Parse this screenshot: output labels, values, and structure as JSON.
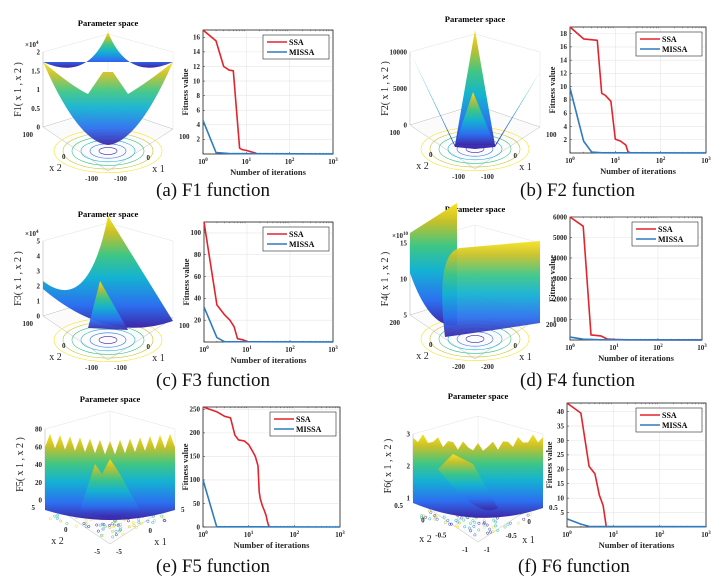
{
  "figure": {
    "panels": [
      {
        "id": "a",
        "caption": "(a) F1 function"
      },
      {
        "id": "b",
        "caption": "(b) F2 function"
      },
      {
        "id": "c",
        "caption": "(c) F3 function"
      },
      {
        "id": "d",
        "caption": "(d) F4 function"
      },
      {
        "id": "e",
        "caption": "(e) F5 function"
      },
      {
        "id": "f",
        "caption": "(f) F6 function"
      }
    ]
  },
  "colors": {
    "ssa": "#e3242b",
    "missa": "#2e7bbf",
    "grid": "#e6e6e6",
    "axis": "#262626"
  },
  "chart_data": [
    {
      "panel": "a",
      "type": "surface",
      "title": "Parameter space",
      "zlabel": "F1( x 1 , x 2 )",
      "xlabel": "x 1",
      "ylabel": "x 2",
      "zticks": [
        "0",
        "0.5",
        "1",
        "1.5",
        "2"
      ],
      "zexponent": "×10^4",
      "xticks": [
        "-100",
        "0",
        "100"
      ],
      "yticks": [
        "-100",
        "0",
        "100"
      ],
      "shape": "bowl"
    },
    {
      "panel": "a",
      "type": "line",
      "xlabel": "Number of iterations",
      "ylabel": "Fitness value",
      "xscale": "log",
      "xlim": [
        1,
        1000
      ],
      "ylim": [
        0,
        17
      ],
      "xticks": [
        "10^0",
        "10^1",
        "10^2",
        "10^3"
      ],
      "yticks": [
        2,
        4,
        6,
        8,
        10,
        12,
        14,
        16
      ],
      "legend": [
        "SSA",
        "MISSA"
      ],
      "legend_position": "top-right",
      "series": [
        {
          "name": "SSA",
          "x": [
            1,
            2,
            3,
            4,
            5,
            7,
            8,
            10,
            17
          ],
          "y": [
            17,
            15.5,
            12,
            11.5,
            11.4,
            0.8,
            0.6,
            0.5,
            0.1
          ]
        },
        {
          "name": "MISSA",
          "x": [
            1,
            2,
            4,
            1000
          ],
          "y": [
            4.6,
            0.2,
            0.05,
            0.02
          ]
        }
      ]
    },
    {
      "panel": "b",
      "type": "surface",
      "title": "Parameter space",
      "zlabel": "F2( x 1 , x 2 )",
      "xlabel": "x 1",
      "ylabel": "x 2",
      "zticks": [
        "0",
        "5000",
        "10000"
      ],
      "xticks": [
        "-100",
        "0",
        "100"
      ],
      "yticks": [
        "-100",
        "0",
        "100"
      ],
      "shape": "pyramid"
    },
    {
      "panel": "b",
      "type": "line",
      "xlabel": "Number of iterations",
      "ylabel": "Fitness value",
      "xscale": "log",
      "xlim": [
        1,
        1000
      ],
      "ylim": [
        0,
        19
      ],
      "xticks": [
        "10^0",
        "10^1",
        "10^2",
        "10^3"
      ],
      "yticks": [
        2,
        4,
        6,
        8,
        10,
        12,
        14,
        16,
        18
      ],
      "legend": [
        "SSA",
        "MISSA"
      ],
      "legend_position": "top-right",
      "series": [
        {
          "name": "SSA",
          "x": [
            1,
            2,
            4,
            5,
            6,
            8,
            10,
            13,
            17,
            19,
            21
          ],
          "y": [
            19,
            17.2,
            17,
            9,
            8.7,
            7.8,
            2.1,
            1.8,
            1.2,
            0.2,
            0.05
          ]
        },
        {
          "name": "MISSA",
          "x": [
            1,
            2,
            3,
            5,
            1000
          ],
          "y": [
            9.8,
            1.8,
            0.15,
            0.03,
            0.01
          ]
        }
      ]
    },
    {
      "panel": "c",
      "type": "surface",
      "title": "Parameter space",
      "zlabel": "F3( x 1 , x 2 )",
      "xlabel": "x 1",
      "ylabel": "x 2",
      "zticks": [
        "0",
        "1",
        "2",
        "3",
        "4",
        "5"
      ],
      "zexponent": "×10^4",
      "xticks": [
        "-100",
        "0",
        "100"
      ],
      "yticks": [
        "-100",
        "0",
        "100"
      ],
      "shape": "ridge"
    },
    {
      "panel": "c",
      "type": "line",
      "xlabel": "Number of iterations",
      "ylabel": "Fitness value",
      "xscale": "log",
      "xlim": [
        1,
        1000
      ],
      "ylim": [
        0,
        110
      ],
      "xticks": [
        "10^0",
        "10^1",
        "10^2",
        "10^3"
      ],
      "yticks": [
        20,
        40,
        60,
        80,
        100
      ],
      "legend": [
        "SSA",
        "MISSA"
      ],
      "legend_position": "top-right",
      "series": [
        {
          "name": "SSA",
          "x": [
            1,
            2,
            3,
            4,
            5,
            6,
            8,
            10
          ],
          "y": [
            110,
            34,
            25,
            20,
            14,
            3,
            2,
            0.5
          ]
        },
        {
          "name": "MISSA",
          "x": [
            1,
            2,
            3,
            1000
          ],
          "y": [
            32,
            4,
            0.3,
            0.1
          ]
        }
      ]
    },
    {
      "panel": "d",
      "type": "surface",
      "title": "Parameter space",
      "zlabel": "F4( x 1 , x 2 )",
      "xlabel": "x 1",
      "ylabel": "x 2",
      "zticks": [
        "5",
        "10",
        "15"
      ],
      "zexponent": "×10^10",
      "xticks": [
        "-200",
        "0",
        "200"
      ],
      "yticks": [
        "-200",
        "0",
        "200"
      ],
      "shape": "valley"
    },
    {
      "panel": "d",
      "type": "line",
      "xlabel": "Number of iterations",
      "ylabel": "Fitness value",
      "xscale": "log",
      "xlim": [
        1,
        1000
      ],
      "ylim": [
        0,
        6000
      ],
      "xticks": [
        "10^0",
        "10^1",
        "10^2",
        "10^3"
      ],
      "yticks": [
        1000,
        2000,
        3000,
        4000,
        5000,
        6000
      ],
      "legend": [
        "SSA",
        "MISSA"
      ],
      "legend_position": "top-right",
      "series": [
        {
          "name": "SSA",
          "x": [
            1,
            2,
            3,
            5,
            7,
            10,
            20,
            1000
          ],
          "y": [
            6000,
            5550,
            250,
            200,
            50,
            30,
            10,
            5
          ]
        },
        {
          "name": "MISSA",
          "x": [
            1,
            2,
            5,
            1000
          ],
          "y": [
            140,
            40,
            10,
            5
          ]
        }
      ]
    },
    {
      "panel": "e",
      "type": "surface",
      "title": "Parameter space",
      "zlabel": "F5( x 1 , x 2 )",
      "xlabel": "x 1",
      "ylabel": "x 2",
      "zticks": [
        "0",
        "20",
        "40",
        "60",
        "80"
      ],
      "xticks": [
        "-5",
        "0",
        "5"
      ],
      "yticks": [
        "-5",
        "0",
        "5"
      ],
      "shape": "rastrigin"
    },
    {
      "panel": "e",
      "type": "line",
      "xlabel": "Number of iterations",
      "ylabel": "Fitness value",
      "xscale": "log",
      "xlim": [
        1,
        1000
      ],
      "ylim": [
        0,
        255
      ],
      "xticks": [
        "10^0",
        "10^1",
        "10^2",
        "10^3"
      ],
      "yticks": [
        0,
        50,
        100,
        150,
        200,
        250
      ],
      "legend": [
        "SSA",
        "MISSA"
      ],
      "legend_position": "top-right",
      "series": [
        {
          "name": "SSA",
          "x": [
            1,
            2,
            3,
            4,
            5,
            6,
            8,
            10,
            12,
            14,
            16,
            17,
            18,
            20,
            22,
            24,
            26,
            28
          ],
          "y": [
            255,
            245,
            235,
            232,
            195,
            185,
            183,
            175,
            162,
            150,
            130,
            75,
            60,
            45,
            35,
            25,
            10,
            0
          ]
        },
        {
          "name": "MISSA",
          "x": [
            1,
            2,
            1000
          ],
          "y": [
            100,
            0.5,
            0
          ]
        }
      ]
    },
    {
      "panel": "f",
      "type": "surface",
      "title": "Parameter space",
      "zlabel": "F6( x 1 , x 2 )",
      "xlabel": "x 1",
      "ylabel": "x 2",
      "zticks": [
        "1",
        "2",
        "3"
      ],
      "xticks": [
        "-1",
        "-0.5",
        "0",
        "0.5"
      ],
      "yticks": [
        "-1",
        "-0.5",
        "0",
        "0.5"
      ],
      "shape": "noisy"
    },
    {
      "panel": "f",
      "type": "line",
      "xlabel": "Number of iterations",
      "ylabel": "Fitness value",
      "xscale": "log",
      "xlim": [
        1,
        1000
      ],
      "ylim": [
        0,
        43
      ],
      "xticks": [
        "10^0",
        "10^1",
        "10^2",
        "10^3"
      ],
      "yticks": [
        5,
        10,
        15,
        20,
        25,
        30,
        35,
        40
      ],
      "legend": [
        "SSA",
        "MISSA"
      ],
      "legend_position": "top-right",
      "series": [
        {
          "name": "SSA",
          "x": [
            1,
            2,
            3,
            4,
            5,
            6,
            7
          ],
          "y": [
            43,
            39.5,
            21,
            18.5,
            11,
            7.5,
            0.3
          ]
        },
        {
          "name": "MISSA",
          "x": [
            1,
            2,
            3,
            1000
          ],
          "y": [
            2.8,
            1.0,
            0.2,
            0.1
          ]
        }
      ]
    }
  ]
}
